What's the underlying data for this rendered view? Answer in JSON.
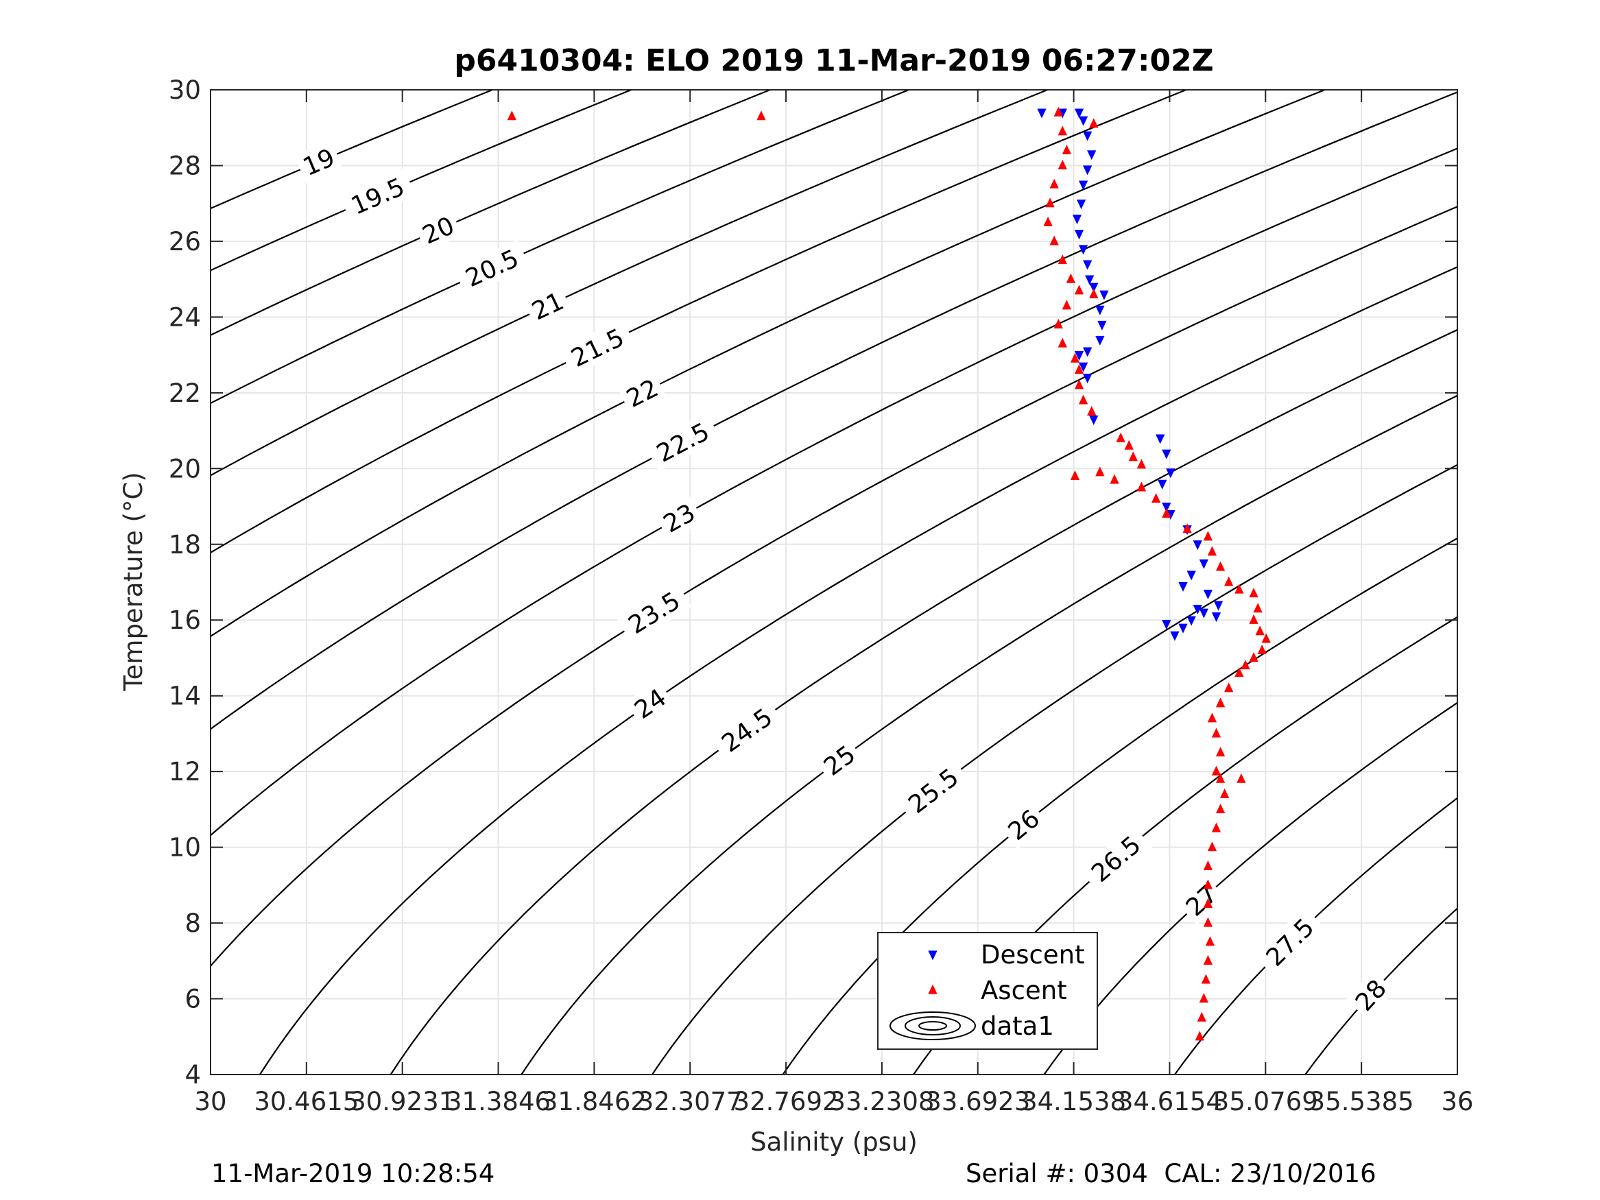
{
  "chart_data": {
    "type": "scatter",
    "title": "p6410304: ELO 2019 11-Mar-2019 06:27:02Z",
    "xlabel": "Salinity (psu)",
    "ylabel": "Temperature (°C)",
    "xlim": [
      30,
      36
    ],
    "ylim": [
      4,
      30
    ],
    "grid": true,
    "xticks": [
      30,
      30.4615,
      30.9231,
      31.3846,
      31.8462,
      32.3077,
      32.7692,
      33.2308,
      33.6923,
      34.1538,
      34.6154,
      35.0769,
      35.5385,
      36
    ],
    "xtick_labels": [
      "30",
      "30.4615",
      "30.9231",
      "31.3846",
      "31.8462",
      "32.3077",
      "32.7692",
      "33.2308",
      "33.6923",
      "34.1538",
      "34.6154",
      "35.0769",
      "35.5385",
      "36"
    ],
    "yticks": [
      4,
      6,
      8,
      10,
      12,
      14,
      16,
      18,
      20,
      22,
      24,
      26,
      28,
      30
    ],
    "ytick_labels": [
      "4",
      "6",
      "8",
      "10",
      "12",
      "14",
      "16",
      "18",
      "20",
      "22",
      "24",
      "26",
      "28",
      "30"
    ],
    "contours": {
      "name": "data1",
      "levels": [
        19,
        19.5,
        20,
        20.5,
        21,
        21.5,
        22,
        22.5,
        23,
        23.5,
        24,
        24.5,
        25,
        25.5,
        26,
        26.5,
        27,
        27.5,
        28
      ],
      "level_labels": [
        "19",
        "19.5",
        "20",
        "20.5",
        "21",
        "21.5",
        "22",
        "22.5",
        "23",
        "23.5",
        "24",
        "24.5",
        "25",
        "25.5",
        "26",
        "26.5",
        "27",
        "27.5",
        "28"
      ]
    },
    "series": [
      {
        "name": "Descent",
        "marker": "down-triangle",
        "color": "#0000ff",
        "points": [
          [
            34.0,
            29.4
          ],
          [
            34.1,
            29.4
          ],
          [
            34.18,
            29.4
          ],
          [
            34.2,
            29.2
          ],
          [
            34.22,
            28.8
          ],
          [
            34.24,
            28.3
          ],
          [
            34.22,
            27.9
          ],
          [
            34.2,
            27.5
          ],
          [
            34.19,
            27.0
          ],
          [
            34.17,
            26.6
          ],
          [
            34.18,
            26.2
          ],
          [
            34.2,
            25.8
          ],
          [
            34.22,
            25.4
          ],
          [
            34.23,
            25.0
          ],
          [
            34.25,
            24.8
          ],
          [
            34.3,
            24.6
          ],
          [
            34.28,
            24.2
          ],
          [
            34.29,
            23.8
          ],
          [
            34.28,
            23.4
          ],
          [
            34.22,
            23.1
          ],
          [
            34.18,
            23.0
          ],
          [
            34.2,
            22.7
          ],
          [
            34.22,
            22.4
          ],
          [
            34.25,
            21.3
          ],
          [
            34.57,
            20.8
          ],
          [
            34.6,
            20.4
          ],
          [
            34.62,
            19.9
          ],
          [
            34.58,
            19.6
          ],
          [
            34.6,
            19.0
          ],
          [
            34.62,
            18.8
          ],
          [
            34.7,
            18.4
          ],
          [
            34.75,
            18.0
          ],
          [
            34.78,
            17.5
          ],
          [
            34.72,
            17.2
          ],
          [
            34.68,
            16.9
          ],
          [
            34.8,
            16.7
          ],
          [
            34.85,
            16.4
          ],
          [
            34.75,
            16.3
          ],
          [
            34.72,
            16.0
          ],
          [
            34.68,
            15.8
          ],
          [
            34.64,
            15.6
          ],
          [
            34.6,
            15.9
          ],
          [
            34.78,
            16.2
          ],
          [
            34.84,
            16.1
          ]
        ]
      },
      {
        "name": "Ascent",
        "marker": "up-triangle",
        "color": "#ff0000",
        "points": [
          [
            31.45,
            29.3
          ],
          [
            32.65,
            29.3
          ],
          [
            34.25,
            29.1
          ],
          [
            34.08,
            29.4
          ],
          [
            34.1,
            28.9
          ],
          [
            34.12,
            28.4
          ],
          [
            34.1,
            28.0
          ],
          [
            34.06,
            27.5
          ],
          [
            34.04,
            27.0
          ],
          [
            34.03,
            26.5
          ],
          [
            34.06,
            26.0
          ],
          [
            34.1,
            25.5
          ],
          [
            34.14,
            25.0
          ],
          [
            34.18,
            24.7
          ],
          [
            34.25,
            24.6
          ],
          [
            34.12,
            24.3
          ],
          [
            34.08,
            23.8
          ],
          [
            34.1,
            23.3
          ],
          [
            34.16,
            22.9
          ],
          [
            34.18,
            22.6
          ],
          [
            34.18,
            22.2
          ],
          [
            34.2,
            21.8
          ],
          [
            34.24,
            21.5
          ],
          [
            34.38,
            20.8
          ],
          [
            34.42,
            20.6
          ],
          [
            34.44,
            20.3
          ],
          [
            34.48,
            20.1
          ],
          [
            34.28,
            19.9
          ],
          [
            34.16,
            19.8
          ],
          [
            34.35,
            19.7
          ],
          [
            34.48,
            19.5
          ],
          [
            34.55,
            19.2
          ],
          [
            34.6,
            18.8
          ],
          [
            34.7,
            18.4
          ],
          [
            34.8,
            18.2
          ],
          [
            34.82,
            17.8
          ],
          [
            34.86,
            17.4
          ],
          [
            34.9,
            17.0
          ],
          [
            34.95,
            16.8
          ],
          [
            35.02,
            16.7
          ],
          [
            35.04,
            16.3
          ],
          [
            35.02,
            16.0
          ],
          [
            35.05,
            15.7
          ],
          [
            35.08,
            15.5
          ],
          [
            35.06,
            15.2
          ],
          [
            35.02,
            15.0
          ],
          [
            34.98,
            14.8
          ],
          [
            34.95,
            14.6
          ],
          [
            34.9,
            14.2
          ],
          [
            34.86,
            13.8
          ],
          [
            34.82,
            13.4
          ],
          [
            34.84,
            13.0
          ],
          [
            34.86,
            12.5
          ],
          [
            34.84,
            12.0
          ],
          [
            34.86,
            11.8
          ],
          [
            34.96,
            11.8
          ],
          [
            34.88,
            11.4
          ],
          [
            34.86,
            11.0
          ],
          [
            34.84,
            10.5
          ],
          [
            34.82,
            10.0
          ],
          [
            34.8,
            9.5
          ],
          [
            34.8,
            9.0
          ],
          [
            34.8,
            8.5
          ],
          [
            34.8,
            8.0
          ],
          [
            34.81,
            7.5
          ],
          [
            34.8,
            7.0
          ],
          [
            34.79,
            6.5
          ],
          [
            34.78,
            6.0
          ],
          [
            34.77,
            5.5
          ],
          [
            34.76,
            5.0
          ]
        ]
      }
    ],
    "legend": {
      "position": "bottom-center",
      "entries": [
        "Descent",
        "Ascent",
        "data1"
      ]
    }
  },
  "footer": {
    "left": "11-Mar-2019 10:28:54",
    "right": "Serial #: 0304  CAL: 23/10/2016"
  }
}
